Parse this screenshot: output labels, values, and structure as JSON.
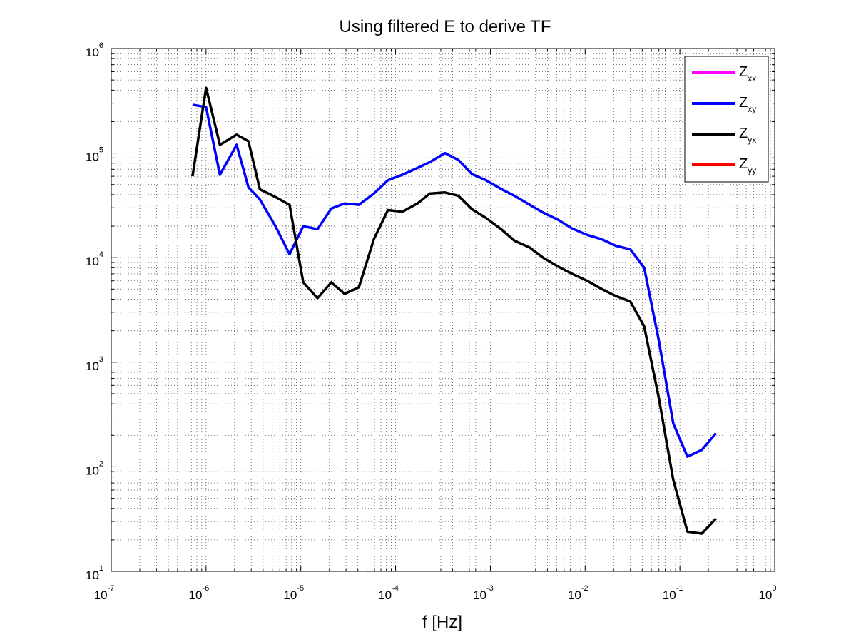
{
  "chart_data": {
    "type": "line",
    "title": "Using filtered E to derive TF",
    "xlabel": "f [Hz]",
    "ylabel": "",
    "xscale": "log",
    "yscale": "log",
    "xlim": [
      1e-07,
      1
    ],
    "ylim": [
      10,
      1000000
    ],
    "grid": true,
    "legend_position": "top-right",
    "x_ticks": [
      {
        "base": "10",
        "exp": "-7"
      },
      {
        "base": "10",
        "exp": "-6"
      },
      {
        "base": "10",
        "exp": "-5"
      },
      {
        "base": "10",
        "exp": "-4"
      },
      {
        "base": "10",
        "exp": "-3"
      },
      {
        "base": "10",
        "exp": "-2"
      },
      {
        "base": "10",
        "exp": "-1"
      },
      {
        "base": "10",
        "exp": "0"
      }
    ],
    "y_ticks": [
      {
        "base": "10",
        "exp": "1"
      },
      {
        "base": "10",
        "exp": "2"
      },
      {
        "base": "10",
        "exp": "3"
      },
      {
        "base": "10",
        "exp": "4"
      },
      {
        "base": "10",
        "exp": "5"
      },
      {
        "base": "10",
        "exp": "6"
      }
    ],
    "legend": [
      {
        "main": "Z",
        "sub": "xx",
        "color": "#ff00ff"
      },
      {
        "main": "Z",
        "sub": "xy",
        "color": "#0000ff"
      },
      {
        "main": "Z",
        "sub": "yx",
        "color": "#000000"
      },
      {
        "main": "Z",
        "sub": "yy",
        "color": "#ff0000"
      }
    ],
    "series": [
      {
        "name": "Zxy",
        "color": "#0000ff",
        "x": [
          7.2e-07,
          1e-06,
          1.4e-06,
          2.1e-06,
          2.8e-06,
          3.7e-06,
          5.4e-06,
          7.6e-06,
          1.06e-05,
          1.5e-05,
          2.1e-05,
          2.9e-05,
          4.1e-05,
          5.9e-05,
          8.3e-05,
          0.000118,
          0.00017,
          0.00023,
          0.00033,
          0.00046,
          0.00064,
          0.0009,
          0.00132,
          0.0018,
          0.0026,
          0.0036,
          0.0052,
          0.0073,
          0.0105,
          0.015,
          0.021,
          0.03,
          0.042,
          0.06,
          0.085,
          0.12,
          0.17,
          0.24
        ],
        "y": [
          290000,
          275000,
          62000,
          120000,
          47000,
          36000,
          20000,
          10800,
          20000,
          18700,
          29500,
          33000,
          32000,
          41000,
          55000,
          62000,
          72000,
          82000,
          100000,
          86000,
          63000,
          55000,
          45000,
          39000,
          32000,
          27000,
          23000,
          19000,
          16500,
          15000,
          13000,
          12000,
          8000,
          1600,
          260,
          125,
          145,
          210
        ]
      },
      {
        "name": "Zyx",
        "color": "#000000",
        "x": [
          7.2e-07,
          1e-06,
          1.4e-06,
          2.1e-06,
          2.8e-06,
          3.7e-06,
          5.4e-06,
          7.6e-06,
          1.06e-05,
          1.5e-05,
          2.1e-05,
          2.9e-05,
          4.1e-05,
          5.9e-05,
          8.3e-05,
          0.000118,
          0.00017,
          0.00023,
          0.00033,
          0.00046,
          0.00064,
          0.0009,
          0.00132,
          0.0018,
          0.0026,
          0.0036,
          0.0052,
          0.0073,
          0.0105,
          0.015,
          0.021,
          0.03,
          0.042,
          0.06,
          0.085,
          0.12,
          0.17,
          0.24
        ],
        "y": [
          60000,
          420000,
          120000,
          150000,
          130000,
          45000,
          38000,
          32000,
          5800,
          4100,
          5800,
          4500,
          5200,
          15000,
          28500,
          27500,
          33000,
          41000,
          42000,
          39000,
          29000,
          24000,
          18500,
          14500,
          12500,
          10000,
          8200,
          7000,
          6000,
          5000,
          4300,
          3800,
          2200,
          450,
          75,
          24,
          23,
          32
        ]
      }
    ]
  }
}
